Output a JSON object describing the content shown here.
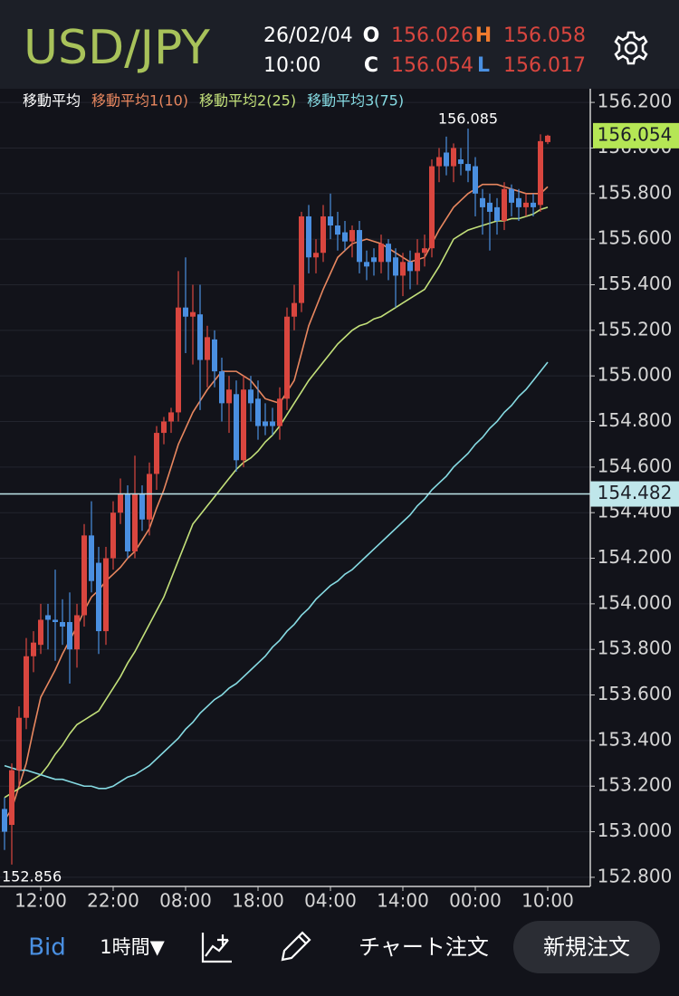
{
  "header": {
    "symbol": "USD/JPY",
    "date": "26/02/04",
    "time": "10:00",
    "ohlc": [
      {
        "letter": "O",
        "value": 156.026,
        "color": "#ffffff"
      },
      {
        "letter": "H",
        "value": 156.058,
        "color": "#ef7a2e"
      },
      {
        "letter": "C",
        "value": 156.054,
        "color": "#ffffff"
      },
      {
        "letter": "L",
        "value": 156.017,
        "color": "#4a90e2"
      }
    ]
  },
  "chart_data": {
    "type": "candlestick",
    "legend_title": "移動平均",
    "up_color": "#d9463f",
    "down_color": "#4a8fe0",
    "categories": [
      null,
      null,
      null,
      null,
      null,
      "12:00",
      null,
      null,
      null,
      null,
      null,
      null,
      null,
      null,
      null,
      "22:00",
      null,
      null,
      null,
      null,
      null,
      null,
      null,
      null,
      null,
      "08:00",
      null,
      null,
      null,
      null,
      null,
      null,
      null,
      null,
      null,
      "18:00",
      null,
      null,
      null,
      null,
      null,
      null,
      null,
      null,
      null,
      "04:00",
      null,
      null,
      null,
      null,
      null,
      null,
      null,
      null,
      null,
      "14:00",
      null,
      null,
      null,
      null,
      null,
      null,
      null,
      null,
      null,
      "00:00",
      null,
      null,
      null,
      null,
      null,
      null,
      null,
      null,
      null,
      "10:00"
    ],
    "open": [
      153.1,
      153.03,
      153.27,
      153.5,
      153.77,
      153.82,
      153.95,
      153.93,
      153.92,
      153.92,
      153.8,
      153.95,
      154.3,
      154.18,
      153.88,
      154.2,
      154.4,
      154.48,
      154.23,
      154.48,
      154.37,
      154.57,
      154.75,
      154.8,
      154.84,
      155.3,
      155.26,
      155.27,
      155.07,
      155.16,
      155.02,
      154.88,
      154.92,
      154.63,
      154.94,
      154.9,
      154.8,
      154.8,
      154.78,
      154.9,
      155.26,
      155.32,
      155.7,
      155.52,
      155.54,
      155.7,
      155.66,
      155.63,
      155.59,
      155.64,
      155.5,
      155.52,
      155.5,
      155.58,
      155.52,
      155.44,
      155.5,
      155.46,
      155.54,
      155.56,
      155.92,
      155.98,
      155.92,
      155.95,
      155.93,
      155.92,
      155.78,
      155.76,
      155.74,
      155.68,
      155.82,
      155.78,
      155.74,
      155.76,
      155.75,
      156.026
    ],
    "high": [
      153.15,
      153.3,
      153.55,
      153.85,
      153.88,
      154.0,
      154.0,
      154.15,
      154.02,
      154.05,
      154.0,
      154.35,
      154.45,
      154.25,
      154.25,
      154.45,
      154.55,
      154.52,
      154.65,
      154.52,
      154.62,
      154.78,
      154.82,
      154.86,
      155.46,
      155.52,
      155.4,
      155.4,
      155.22,
      155.2,
      155.08,
      155.0,
      154.98,
      155.0,
      155.0,
      154.98,
      154.88,
      154.86,
      154.95,
      155.3,
      155.4,
      155.72,
      155.75,
      155.6,
      155.75,
      155.8,
      155.72,
      155.68,
      155.66,
      155.68,
      155.55,
      155.56,
      155.62,
      155.6,
      155.56,
      155.54,
      155.55,
      155.6,
      155.62,
      155.95,
      156.0,
      156.05,
      156.02,
      156.0,
      156.085,
      155.96,
      155.82,
      155.8,
      155.78,
      155.85,
      155.84,
      155.82,
      155.8,
      155.8,
      156.06,
      156.058
    ],
    "low": [
      152.92,
      152.856,
      153.2,
      153.45,
      153.7,
      153.78,
      153.8,
      153.75,
      153.82,
      153.65,
      153.72,
      153.9,
      154.05,
      153.78,
      153.82,
      154.15,
      154.35,
      154.2,
      154.2,
      154.32,
      154.3,
      154.5,
      154.7,
      154.75,
      154.8,
      155.1,
      155.05,
      154.85,
      154.95,
      154.95,
      154.8,
      154.75,
      154.58,
      154.6,
      154.8,
      154.72,
      154.74,
      154.74,
      154.72,
      154.85,
      155.2,
      155.28,
      155.45,
      155.45,
      155.5,
      155.6,
      155.55,
      155.55,
      155.52,
      155.45,
      155.42,
      155.44,
      155.45,
      155.42,
      155.3,
      155.35,
      155.38,
      155.4,
      155.48,
      155.52,
      155.85,
      155.88,
      155.85,
      155.88,
      155.85,
      155.7,
      155.62,
      155.55,
      155.62,
      155.64,
      155.7,
      155.68,
      155.7,
      155.7,
      155.72,
      156.017
    ],
    "close": [
      153.0,
      153.27,
      153.5,
      153.77,
      153.83,
      153.93,
      153.93,
      153.92,
      153.9,
      153.8,
      153.95,
      154.3,
      154.1,
      153.88,
      154.2,
      154.4,
      154.48,
      154.23,
      154.48,
      154.37,
      154.57,
      154.75,
      154.8,
      154.84,
      155.3,
      155.26,
      155.28,
      155.07,
      155.17,
      155.02,
      154.88,
      154.94,
      154.63,
      154.94,
      154.88,
      154.78,
      154.78,
      154.78,
      154.9,
      155.26,
      155.32,
      155.7,
      155.52,
      155.54,
      155.7,
      155.66,
      155.62,
      155.59,
      155.64,
      155.5,
      155.48,
      155.5,
      155.58,
      155.5,
      155.44,
      155.5,
      155.46,
      155.54,
      155.56,
      155.92,
      155.96,
      155.92,
      156.0,
      155.93,
      155.9,
      155.8,
      155.74,
      155.72,
      155.68,
      155.82,
      155.76,
      155.74,
      155.76,
      155.74,
      156.03,
      156.054
    ],
    "series": [
      {
        "name": "移動平均1(10)",
        "color": "#e8875f",
        "values": [
          153.05,
          153.1,
          153.2,
          153.3,
          153.45,
          153.59,
          153.65,
          153.71,
          153.78,
          153.84,
          153.9,
          153.97,
          154.03,
          154.06,
          154.1,
          154.13,
          154.16,
          154.2,
          154.23,
          154.28,
          154.33,
          154.42,
          154.5,
          154.6,
          154.7,
          154.77,
          154.84,
          154.89,
          154.94,
          154.98,
          155.02,
          155.02,
          155.02,
          155.0,
          154.98,
          154.94,
          154.9,
          154.89,
          154.88,
          154.93,
          154.98,
          155.1,
          155.22,
          155.3,
          155.38,
          155.45,
          155.52,
          155.55,
          155.58,
          155.59,
          155.6,
          155.59,
          155.58,
          155.56,
          155.54,
          155.52,
          155.5,
          155.51,
          155.52,
          155.58,
          155.64,
          155.69,
          155.74,
          155.77,
          155.8,
          155.82,
          155.84,
          155.84,
          155.84,
          155.83,
          155.82,
          155.81,
          155.8,
          155.8,
          155.8,
          155.83
        ]
      },
      {
        "name": "移動平均2(25)",
        "color": "#c3e07a",
        "values": [
          153.15,
          153.17,
          153.19,
          153.21,
          153.23,
          153.25,
          153.29,
          153.34,
          153.38,
          153.43,
          153.47,
          153.49,
          153.51,
          153.53,
          153.58,
          153.63,
          153.68,
          153.74,
          153.79,
          153.85,
          153.91,
          153.97,
          154.03,
          154.11,
          154.19,
          154.27,
          154.35,
          154.39,
          154.43,
          154.47,
          154.51,
          154.55,
          154.59,
          154.62,
          154.64,
          154.67,
          154.71,
          154.74,
          154.78,
          154.83,
          154.88,
          154.93,
          154.98,
          155.02,
          155.06,
          155.1,
          155.14,
          155.17,
          155.2,
          155.22,
          155.23,
          155.25,
          155.26,
          155.28,
          155.3,
          155.32,
          155.34,
          155.36,
          155.38,
          155.43,
          155.48,
          155.54,
          155.6,
          155.62,
          155.64,
          155.65,
          155.66,
          155.67,
          155.68,
          155.68,
          155.69,
          155.69,
          155.7,
          155.71,
          155.73,
          155.74
        ]
      },
      {
        "name": "移動平均3(75)",
        "color": "#86dbe3",
        "values": [
          153.29,
          153.28,
          153.27,
          153.27,
          153.26,
          153.25,
          153.24,
          153.23,
          153.23,
          153.22,
          153.21,
          153.2,
          153.2,
          153.19,
          153.19,
          153.2,
          153.22,
          153.24,
          153.25,
          153.27,
          153.29,
          153.32,
          153.35,
          153.38,
          153.41,
          153.45,
          153.48,
          153.52,
          153.55,
          153.58,
          153.6,
          153.63,
          153.65,
          153.68,
          153.71,
          153.74,
          153.77,
          153.81,
          153.84,
          153.88,
          153.91,
          153.95,
          153.98,
          154.02,
          154.05,
          154.08,
          154.1,
          154.13,
          154.15,
          154.18,
          154.21,
          154.24,
          154.27,
          154.3,
          154.33,
          154.36,
          154.39,
          154.43,
          154.46,
          154.5,
          154.53,
          154.56,
          154.6,
          154.63,
          154.66,
          154.7,
          154.73,
          154.77,
          154.8,
          154.84,
          154.87,
          154.91,
          154.94,
          154.98,
          155.02,
          155.06
        ]
      }
    ],
    "max_label": 156.085,
    "min_label": 152.856,
    "price_line": {
      "value": 154.482,
      "color": "#bfe6ea"
    },
    "last_price": {
      "value": 156.054,
      "color": "#b5e655"
    },
    "ylim": [
      152.76,
      156.26
    ],
    "yticks": [
      {
        "value": 152.8,
        "label": "152.800"
      },
      {
        "value": 153.0,
        "label": "153.000"
      },
      {
        "value": 153.2,
        "label": "153.200"
      },
      {
        "value": 153.4,
        "label": "153.400"
      },
      {
        "value": 153.6,
        "label": "153.600"
      },
      {
        "value": 153.8,
        "label": "153.800"
      },
      {
        "value": 154.0,
        "label": "154.000"
      },
      {
        "value": 154.2,
        "label": "154.200"
      },
      {
        "value": 154.4,
        "label": "154.400"
      },
      {
        "value": 154.6,
        "label": "154.600"
      },
      {
        "value": 154.8,
        "label": "154.800"
      },
      {
        "value": 155.0,
        "label": "155.000"
      },
      {
        "value": 155.2,
        "label": "155.200"
      },
      {
        "value": 155.4,
        "label": "155.400"
      },
      {
        "value": 155.6,
        "label": "155.600"
      },
      {
        "value": 155.8,
        "label": "155.800"
      },
      {
        "value": 156.0,
        "label": "156.000"
      },
      {
        "value": 156.2,
        "label": "156.200"
      }
    ],
    "grid": true
  },
  "toolbar": {
    "price_type": "Bid",
    "interval": "1時間▼",
    "chart_order": "チャート注文",
    "new_order": "新規注文"
  }
}
